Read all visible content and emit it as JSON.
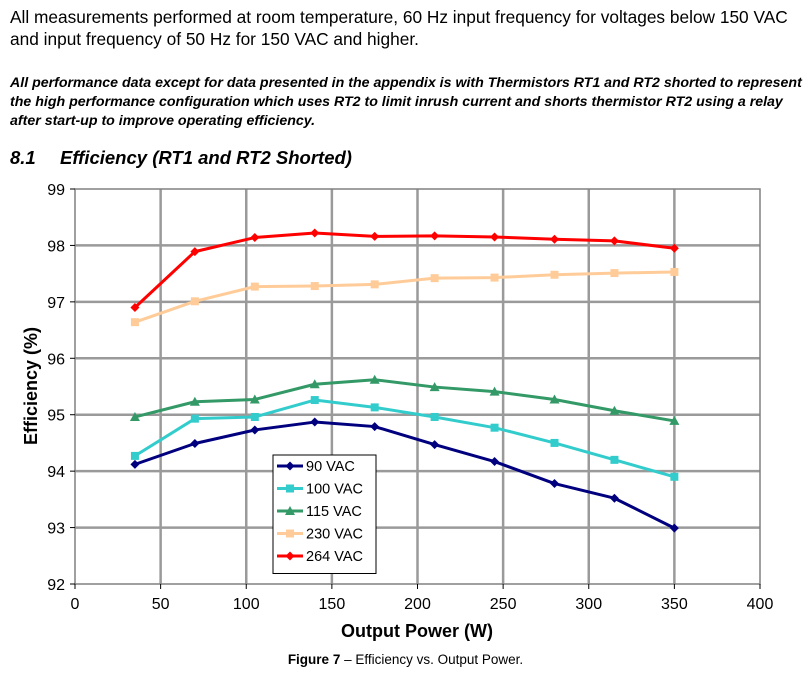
{
  "intro_text": "All measurements performed at room temperature, 60 Hz input frequency for voltages below 150 VAC and input frequency of 50 Hz for 150 VAC and higher.",
  "note_text": "All performance data except for data presented in the appendix is with Thermistors RT1 and RT2 shorted to represent the high performance configuration which uses RT2 to limit inrush current and shorts thermistor RT2 using a relay after start-up to improve operating efficiency.",
  "section": {
    "number": "8.1",
    "title": "Efficiency (RT1 and RT2 Shorted)"
  },
  "caption": {
    "label": "Figure 7",
    "text": " – Efficiency vs. Output Power."
  },
  "chart_data": {
    "type": "line",
    "xlabel": "Output Power (W)",
    "ylabel": "Efficiency (%)",
    "xlim": [
      0,
      400
    ],
    "ylim": [
      92,
      99
    ],
    "xticks": [
      0,
      50,
      100,
      150,
      200,
      250,
      300,
      350,
      400
    ],
    "yticks": [
      92,
      93,
      94,
      95,
      96,
      97,
      98,
      99
    ],
    "grid": true,
    "legend_position": "lower-middle",
    "x": [
      35,
      70,
      105,
      140,
      175,
      210,
      245,
      280,
      315,
      350
    ],
    "series": [
      {
        "name": "90 VAC",
        "color": "#00007f",
        "marker": "diamond",
        "values": [
          94.12,
          94.49,
          94.73,
          94.87,
          94.79,
          94.47,
          94.17,
          93.78,
          93.52,
          92.99
        ]
      },
      {
        "name": "100 VAC",
        "color": "#33cccc",
        "marker": "square",
        "values": [
          94.27,
          94.93,
          94.96,
          95.26,
          95.13,
          94.96,
          94.77,
          94.5,
          94.2,
          93.9
        ]
      },
      {
        "name": "115 VAC",
        "color": "#339966",
        "marker": "triangle",
        "values": [
          94.96,
          95.23,
          95.27,
          95.54,
          95.62,
          95.49,
          95.41,
          95.27,
          95.07,
          94.89
        ]
      },
      {
        "name": "230 VAC",
        "color": "#ffcc99",
        "marker": "square",
        "values": [
          96.64,
          97.01,
          97.27,
          97.28,
          97.31,
          97.42,
          97.43,
          97.48,
          97.51,
          97.53
        ]
      },
      {
        "name": "264 VAC",
        "color": "#ff0000",
        "marker": "diamond",
        "values": [
          96.9,
          97.89,
          98.14,
          98.22,
          98.16,
          98.17,
          98.15,
          98.11,
          98.08,
          97.95
        ]
      }
    ]
  }
}
